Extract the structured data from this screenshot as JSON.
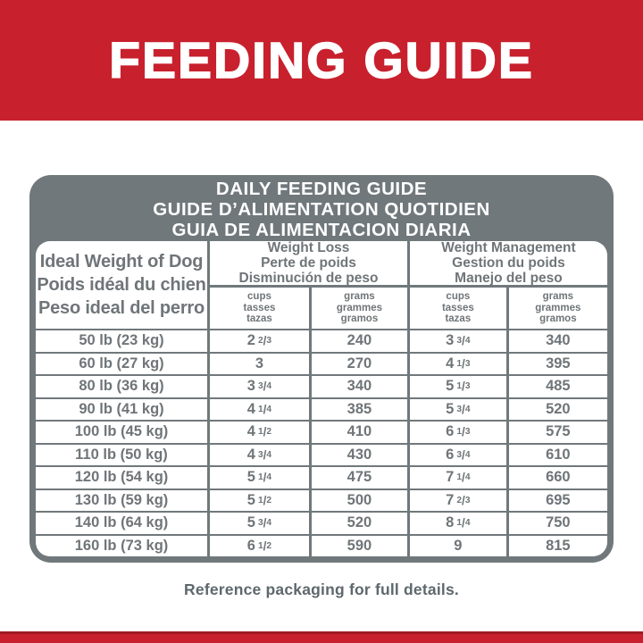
{
  "banner": {
    "title": "FEEDING GUIDE"
  },
  "table": {
    "title_lines": [
      "DAILY FEEDING GUIDE",
      "GUIDE D’ALIMENTATION QUOTIDIEN",
      "GUIA DE ALIMENTACION DIARIA"
    ],
    "weight_header": [
      "Ideal Weight of Dog",
      "Poids idéal du chien",
      "Peso ideal del perro"
    ],
    "groups": [
      {
        "lines": [
          "Weight Loss",
          "Perte de poids",
          "Disminución de peso"
        ]
      },
      {
        "lines": [
          "Weight Management",
          "Gestion du poids",
          "Manejo del peso"
        ]
      }
    ],
    "units": {
      "cups": [
        "cups",
        "tasses",
        "tazas"
      ],
      "grams": [
        "grams",
        "grammes",
        "gramos"
      ]
    },
    "rows": [
      {
        "weight": "50 lb (23 kg)",
        "weight_loss": {
          "cups": "2 2/3",
          "grams": "240"
        },
        "weight_management": {
          "cups": "3 3/4",
          "grams": "340"
        }
      },
      {
        "weight": "60 lb (27 kg)",
        "weight_loss": {
          "cups": "3",
          "grams": "270"
        },
        "weight_management": {
          "cups": "4 1/3",
          "grams": "395"
        }
      },
      {
        "weight": "80 lb (36 kg)",
        "weight_loss": {
          "cups": "3 3/4",
          "grams": "340"
        },
        "weight_management": {
          "cups": "5 1/3",
          "grams": "485"
        }
      },
      {
        "weight": "90 lb (41 kg)",
        "weight_loss": {
          "cups": "4 1/4",
          "grams": "385"
        },
        "weight_management": {
          "cups": "5 3/4",
          "grams": "520"
        }
      },
      {
        "weight": "100 lb (45 kg)",
        "weight_loss": {
          "cups": "4 1/2",
          "grams": "410"
        },
        "weight_management": {
          "cups": "6 1/3",
          "grams": "575"
        }
      },
      {
        "weight": "110 lb (50 kg)",
        "weight_loss": {
          "cups": "4 3/4",
          "grams": "430"
        },
        "weight_management": {
          "cups": "6 3/4",
          "grams": "610"
        }
      },
      {
        "weight": "120 lb (54 kg)",
        "weight_loss": {
          "cups": "5 1/4",
          "grams": "475"
        },
        "weight_management": {
          "cups": "7 1/4",
          "grams": "660"
        }
      },
      {
        "weight": "130 lb (59 kg)",
        "weight_loss": {
          "cups": "5 1/2",
          "grams": "500"
        },
        "weight_management": {
          "cups": "7 2/3",
          "grams": "695"
        }
      },
      {
        "weight": "140 lb (64 kg)",
        "weight_loss": {
          "cups": "5 3/4",
          "grams": "520"
        },
        "weight_management": {
          "cups": "8 1/4",
          "grams": "750"
        }
      },
      {
        "weight": "160 lb (73 kg)",
        "weight_loss": {
          "cups": "6 1/2",
          "grams": "590"
        },
        "weight_management": {
          "cups": "9",
          "grams": "815"
        }
      }
    ]
  },
  "footer": {
    "note": "Reference packaging for full details."
  },
  "colors": {
    "brand_red": "#c8202d",
    "red_dark_edge": "#9d1c24",
    "frame_gray": "#70787b",
    "table_text_gray": "#6f7578",
    "footer_text_gray": "#5e686c"
  }
}
